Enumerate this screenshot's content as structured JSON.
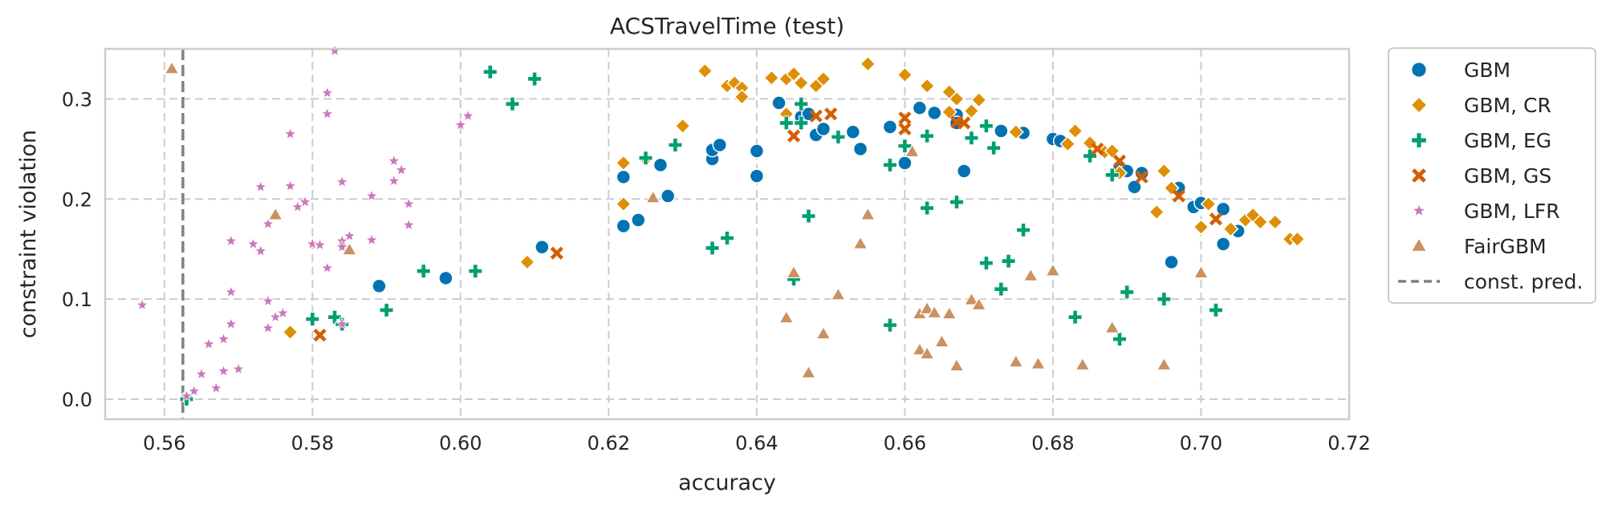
{
  "chart_data": {
    "type": "scatter",
    "title": "ACSTravelTime (test)",
    "xlabel": "accuracy",
    "ylabel": "constraint violation",
    "xlim": [
      0.552,
      0.72
    ],
    "ylim": [
      -0.02,
      0.35
    ],
    "xticks": [
      "0.56",
      "0.58",
      "0.60",
      "0.62",
      "0.64",
      "0.66",
      "0.68",
      "0.70",
      "0.72"
    ],
    "yticks": [
      "0.0",
      "0.1",
      "0.2",
      "0.3"
    ],
    "grid": true,
    "legend_position": "outside-right",
    "reference_line": {
      "name": "const. pred.",
      "x": 0.5625,
      "color": "#808080",
      "style": "dashed"
    },
    "series": [
      {
        "name": "GBM",
        "marker": "circle",
        "color": "#0173b2",
        "points": [
          [
            0.589,
            0.113
          ],
          [
            0.598,
            0.121
          ],
          [
            0.611,
            0.152
          ],
          [
            0.622,
            0.173
          ],
          [
            0.622,
            0.222
          ],
          [
            0.624,
            0.179
          ],
          [
            0.627,
            0.234
          ],
          [
            0.628,
            0.203
          ],
          [
            0.634,
            0.24
          ],
          [
            0.634,
            0.249
          ],
          [
            0.635,
            0.254
          ],
          [
            0.64,
            0.248
          ],
          [
            0.64,
            0.223
          ],
          [
            0.643,
            0.296
          ],
          [
            0.646,
            0.282
          ],
          [
            0.647,
            0.285
          ],
          [
            0.648,
            0.264
          ],
          [
            0.649,
            0.27
          ],
          [
            0.653,
            0.267
          ],
          [
            0.654,
            0.25
          ],
          [
            0.658,
            0.272
          ],
          [
            0.66,
            0.236
          ],
          [
            0.662,
            0.291
          ],
          [
            0.664,
            0.286
          ],
          [
            0.667,
            0.284
          ],
          [
            0.667,
            0.276
          ],
          [
            0.668,
            0.228
          ],
          [
            0.673,
            0.268
          ],
          [
            0.676,
            0.266
          ],
          [
            0.68,
            0.26
          ],
          [
            0.681,
            0.258
          ],
          [
            0.689,
            0.232
          ],
          [
            0.69,
            0.228
          ],
          [
            0.691,
            0.212
          ],
          [
            0.692,
            0.226
          ],
          [
            0.696,
            0.137
          ],
          [
            0.697,
            0.211
          ],
          [
            0.699,
            0.192
          ],
          [
            0.7,
            0.196
          ],
          [
            0.703,
            0.19
          ],
          [
            0.703,
            0.155
          ],
          [
            0.705,
            0.168
          ]
        ]
      },
      {
        "name": "GBM, CR",
        "marker": "diamond",
        "color": "#de8f05",
        "points": [
          [
            0.563,
            0.002
          ],
          [
            0.577,
            0.067
          ],
          [
            0.595,
            0.128
          ],
          [
            0.609,
            0.137
          ],
          [
            0.622,
            0.195
          ],
          [
            0.622,
            0.236
          ],
          [
            0.625,
            0.24
          ],
          [
            0.63,
            0.273
          ],
          [
            0.633,
            0.328
          ],
          [
            0.636,
            0.313
          ],
          [
            0.637,
            0.316
          ],
          [
            0.638,
            0.311
          ],
          [
            0.638,
            0.302
          ],
          [
            0.642,
            0.321
          ],
          [
            0.644,
            0.285
          ],
          [
            0.644,
            0.32
          ],
          [
            0.645,
            0.325
          ],
          [
            0.646,
            0.316
          ],
          [
            0.648,
            0.313
          ],
          [
            0.649,
            0.32
          ],
          [
            0.655,
            0.335
          ],
          [
            0.66,
            0.324
          ],
          [
            0.663,
            0.313
          ],
          [
            0.666,
            0.307
          ],
          [
            0.667,
            0.3
          ],
          [
            0.666,
            0.287
          ],
          [
            0.669,
            0.288
          ],
          [
            0.67,
            0.299
          ],
          [
            0.675,
            0.267
          ],
          [
            0.682,
            0.255
          ],
          [
            0.683,
            0.268
          ],
          [
            0.685,
            0.256
          ],
          [
            0.687,
            0.247
          ],
          [
            0.688,
            0.248
          ],
          [
            0.689,
            0.226
          ],
          [
            0.694,
            0.187
          ],
          [
            0.695,
            0.228
          ],
          [
            0.696,
            0.211
          ],
          [
            0.7,
            0.172
          ],
          [
            0.701,
            0.195
          ],
          [
            0.704,
            0.17
          ],
          [
            0.706,
            0.179
          ],
          [
            0.707,
            0.184
          ],
          [
            0.708,
            0.177
          ],
          [
            0.71,
            0.177
          ],
          [
            0.712,
            0.16
          ],
          [
            0.713,
            0.16
          ]
        ]
      },
      {
        "name": "GBM, EG",
        "marker": "plus",
        "color": "#029e73",
        "points": [
          [
            0.563,
            0.0
          ],
          [
            0.58,
            0.08
          ],
          [
            0.583,
            0.082
          ],
          [
            0.584,
            0.075
          ],
          [
            0.59,
            0.089
          ],
          [
            0.595,
            0.128
          ],
          [
            0.602,
            0.128
          ],
          [
            0.604,
            0.327
          ],
          [
            0.607,
            0.295
          ],
          [
            0.61,
            0.32
          ],
          [
            0.625,
            0.241
          ],
          [
            0.629,
            0.254
          ],
          [
            0.634,
            0.151
          ],
          [
            0.636,
            0.161
          ],
          [
            0.644,
            0.276
          ],
          [
            0.645,
            0.12
          ],
          [
            0.646,
            0.276
          ],
          [
            0.646,
            0.295
          ],
          [
            0.647,
            0.183
          ],
          [
            0.651,
            0.262
          ],
          [
            0.658,
            0.074
          ],
          [
            0.658,
            0.234
          ],
          [
            0.66,
            0.253
          ],
          [
            0.663,
            0.191
          ],
          [
            0.663,
            0.263
          ],
          [
            0.667,
            0.197
          ],
          [
            0.669,
            0.261
          ],
          [
            0.671,
            0.273
          ],
          [
            0.671,
            0.136
          ],
          [
            0.672,
            0.251
          ],
          [
            0.673,
            0.11
          ],
          [
            0.674,
            0.138
          ],
          [
            0.676,
            0.169
          ],
          [
            0.683,
            0.082
          ],
          [
            0.685,
            0.243
          ],
          [
            0.688,
            0.224
          ],
          [
            0.689,
            0.06
          ],
          [
            0.69,
            0.107
          ],
          [
            0.695,
            0.1
          ],
          [
            0.702,
            0.089
          ]
        ]
      },
      {
        "name": "GBM, GS",
        "marker": "x",
        "color": "#d55e00",
        "points": [
          [
            0.581,
            0.064
          ],
          [
            0.613,
            0.146
          ],
          [
            0.645,
            0.263
          ],
          [
            0.648,
            0.283
          ],
          [
            0.65,
            0.285
          ],
          [
            0.66,
            0.281
          ],
          [
            0.66,
            0.27
          ],
          [
            0.667,
            0.277
          ],
          [
            0.668,
            0.276
          ],
          [
            0.686,
            0.25
          ],
          [
            0.689,
            0.238
          ],
          [
            0.692,
            0.222
          ],
          [
            0.697,
            0.203
          ],
          [
            0.702,
            0.18
          ]
        ]
      },
      {
        "name": "GBM, LFR",
        "marker": "star",
        "color": "#cc78bc",
        "points": [
          [
            0.557,
            0.094
          ],
          [
            0.563,
            0.003
          ],
          [
            0.564,
            0.008
          ],
          [
            0.565,
            0.025
          ],
          [
            0.566,
            0.055
          ],
          [
            0.567,
            0.011
          ],
          [
            0.568,
            0.06
          ],
          [
            0.568,
            0.028
          ],
          [
            0.569,
            0.075
          ],
          [
            0.569,
            0.107
          ],
          [
            0.569,
            0.158
          ],
          [
            0.57,
            0.03
          ],
          [
            0.572,
            0.155
          ],
          [
            0.573,
            0.148
          ],
          [
            0.573,
            0.212
          ],
          [
            0.574,
            0.071
          ],
          [
            0.574,
            0.098
          ],
          [
            0.574,
            0.175
          ],
          [
            0.575,
            0.082
          ],
          [
            0.576,
            0.086
          ],
          [
            0.577,
            0.213
          ],
          [
            0.577,
            0.265
          ],
          [
            0.578,
            0.192
          ],
          [
            0.579,
            0.197
          ],
          [
            0.58,
            0.155
          ],
          [
            0.581,
            0.154
          ],
          [
            0.582,
            0.285
          ],
          [
            0.582,
            0.131
          ],
          [
            0.582,
            0.306
          ],
          [
            0.583,
            0.348
          ],
          [
            0.584,
            0.158
          ],
          [
            0.584,
            0.217
          ],
          [
            0.584,
            0.152
          ],
          [
            0.585,
            0.163
          ],
          [
            0.588,
            0.159
          ],
          [
            0.588,
            0.203
          ],
          [
            0.591,
            0.218
          ],
          [
            0.591,
            0.238
          ],
          [
            0.592,
            0.229
          ],
          [
            0.593,
            0.195
          ],
          [
            0.593,
            0.174
          ],
          [
            0.6,
            0.274
          ],
          [
            0.601,
            0.283
          ],
          [
            0.584,
            0.075
          ]
        ]
      },
      {
        "name": "FairGBM",
        "marker": "triangle",
        "color": "#ca9161",
        "points": [
          [
            0.561,
            0.33
          ],
          [
            0.575,
            0.184
          ],
          [
            0.585,
            0.149
          ],
          [
            0.626,
            0.201
          ],
          [
            0.644,
            0.081
          ],
          [
            0.645,
            0.126
          ],
          [
            0.649,
            0.065
          ],
          [
            0.647,
            0.026
          ],
          [
            0.651,
            0.104
          ],
          [
            0.654,
            0.155
          ],
          [
            0.655,
            0.184
          ],
          [
            0.662,
            0.049
          ],
          [
            0.662,
            0.085
          ],
          [
            0.663,
            0.09
          ],
          [
            0.663,
            0.045
          ],
          [
            0.664,
            0.086
          ],
          [
            0.665,
            0.057
          ],
          [
            0.666,
            0.085
          ],
          [
            0.667,
            0.033
          ],
          [
            0.669,
            0.099
          ],
          [
            0.67,
            0.094
          ],
          [
            0.675,
            0.037
          ],
          [
            0.677,
            0.123
          ],
          [
            0.678,
            0.035
          ],
          [
            0.68,
            0.128
          ],
          [
            0.684,
            0.034
          ],
          [
            0.688,
            0.071
          ],
          [
            0.695,
            0.034
          ],
          [
            0.7,
            0.126
          ],
          [
            0.661,
            0.247
          ]
        ]
      }
    ]
  }
}
